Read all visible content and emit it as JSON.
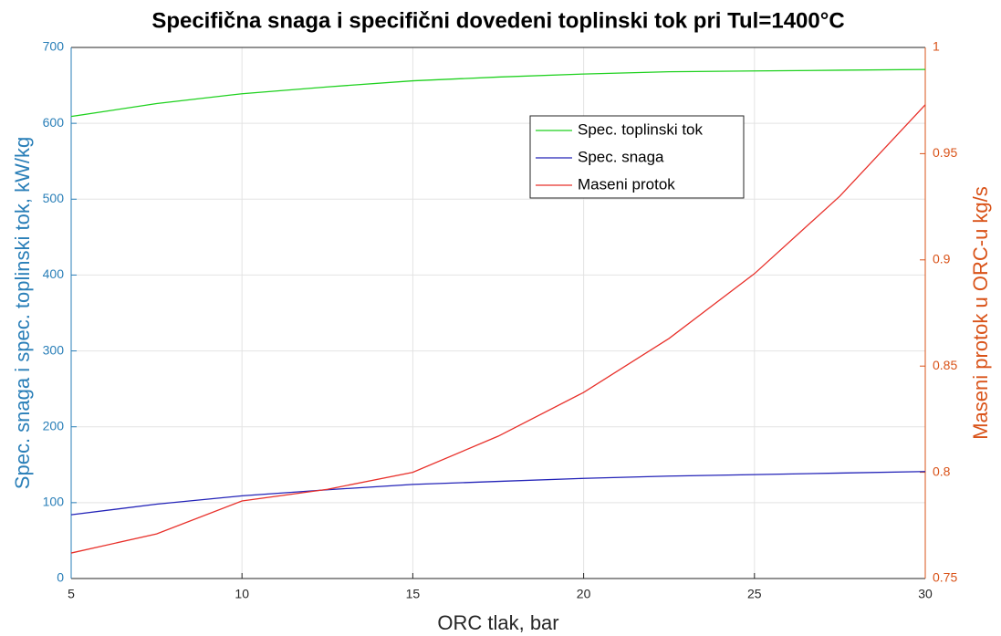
{
  "chart_data": {
    "type": "line",
    "title": "Specifična snaga i specifični dovedeni toplinski tok pri Tul=1400°C",
    "xlabel": "ORC tlak, bar",
    "ylabel": "Spec. snaga i spec. toplinski tok, kW/kg",
    "y2label": "Maseni protok u ORC-u kg/s",
    "x": [
      5,
      7.5,
      10,
      12.5,
      15,
      17.5,
      20,
      22.5,
      25,
      27.5,
      30
    ],
    "series": [
      {
        "name": "Spec. toplinski tok",
        "color": "#1fd11f",
        "values": [
          609,
          626,
          639,
          648,
          656,
          661,
          665,
          668,
          669,
          670,
          671
        ]
      },
      {
        "name": "Spec. snaga",
        "color": "#2323b8",
        "values": [
          84,
          98,
          109,
          117,
          124,
          128,
          132,
          135,
          137,
          139,
          141
        ]
      },
      {
        "name": "Maseni protok",
        "color": "#e8302a",
        "axis": "y2",
        "values": [
          0.762,
          0.771,
          0.7865,
          0.792,
          0.8,
          0.817,
          0.8376,
          0.863,
          0.8935,
          0.93,
          0.973
        ]
      }
    ],
    "xlim": [
      5,
      30
    ],
    "xticks": [
      5,
      10,
      15,
      20,
      25,
      30
    ],
    "ylim": [
      0,
      700
    ],
    "yticks": [
      0,
      100,
      200,
      300,
      400,
      500,
      600,
      700
    ],
    "y2lim": [
      0.75,
      1
    ],
    "y2ticks": [
      0.75,
      0.8,
      0.85,
      0.9,
      0.95,
      1
    ],
    "grid": true,
    "ycolor": "#2a7fb8",
    "y2color": "#d95319"
  }
}
